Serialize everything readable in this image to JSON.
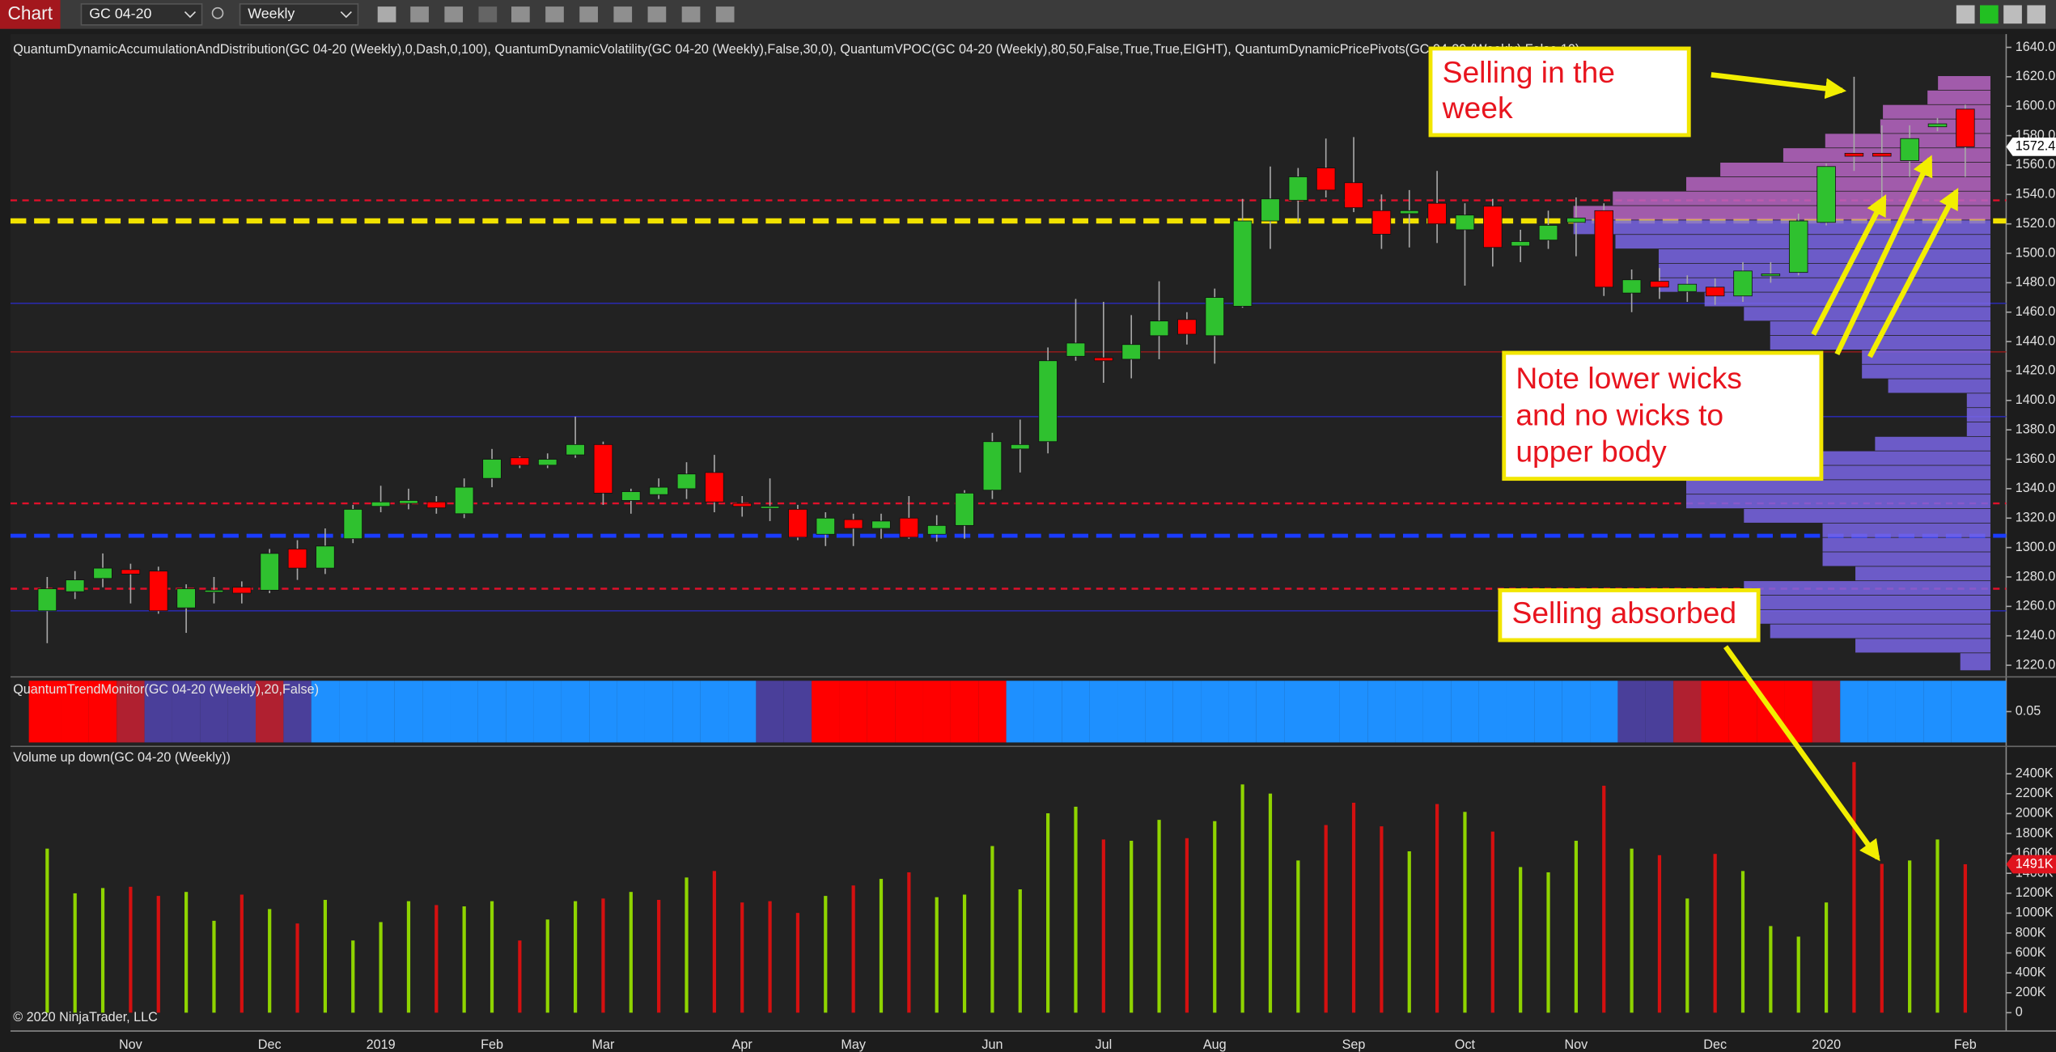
{
  "toolbar": {
    "button": "Chart",
    "instrument": "GC 04-20",
    "interval": "Weekly"
  },
  "footer": "© 2020 NinjaTrader, LLC",
  "chart_data": [
    {
      "type": "candlestick",
      "title": "QuantumDynamicAccumulationAndDistribution(GC 04-20 (Weekly),0,Dash,0,100), QuantumDynamicVolatility(GC 04-20 (Weekly),False,30,0), QuantumVPOC(GC 04-20 (Weekly),80,50,False,True,True,EIGHT), QuantumDynamicPricePivots(GC 04-20 (Weekly),False,10)",
      "open": [
        1257,
        1270,
        1279,
        1285,
        1284,
        1259,
        1271,
        1273,
        1271,
        1299,
        1286,
        1306,
        1328,
        1330,
        1331,
        1323,
        1347,
        1361,
        1356,
        1363,
        1370,
        1332,
        1336,
        1340,
        1351,
        1330,
        1328,
        1326,
        1309,
        1319,
        1313,
        1320,
        1309,
        1315,
        1339,
        1367,
        1372,
        1430,
        1429,
        1428,
        1444,
        1455,
        1444,
        1464,
        1522,
        1536,
        1558,
        1548,
        1529,
        1527,
        1534,
        1516,
        1532,
        1505,
        1509,
        1521,
        1529,
        1473,
        1481,
        1474,
        1477,
        1471,
        1486,
        1487,
        1521,
        1568,
        1568,
        1563,
        1586,
        1598
      ],
      "high": [
        1280,
        1284,
        1296,
        1289,
        1287,
        1275,
        1280,
        1277,
        1299,
        1305,
        1313,
        1329,
        1342,
        1340,
        1335,
        1347,
        1367,
        1362,
        1364,
        1389,
        1372,
        1340,
        1347,
        1358,
        1363,
        1335,
        1347,
        1329,
        1324,
        1323,
        1323,
        1335,
        1322,
        1339,
        1378,
        1387,
        1436,
        1469,
        1467,
        1458,
        1481,
        1460,
        1476,
        1537,
        1559,
        1558,
        1578,
        1579,
        1540,
        1543,
        1556,
        1534,
        1537,
        1516,
        1529,
        1538,
        1534,
        1489,
        1490,
        1485,
        1483,
        1494,
        1494,
        1527,
        1561,
        1620,
        1587,
        1587,
        1592,
        1601
      ],
      "low": [
        1235,
        1265,
        1273,
        1262,
        1255,
        1242,
        1262,
        1262,
        1269,
        1278,
        1282,
        1303,
        1324,
        1326,
        1323,
        1320,
        1341,
        1354,
        1354,
        1361,
        1329,
        1323,
        1333,
        1333,
        1324,
        1321,
        1318,
        1305,
        1301,
        1301,
        1306,
        1306,
        1304,
        1306,
        1333,
        1351,
        1364,
        1427,
        1412,
        1415,
        1428,
        1438,
        1425,
        1463,
        1503,
        1521,
        1538,
        1528,
        1503,
        1504,
        1507,
        1478,
        1491,
        1494,
        1503,
        1498,
        1471,
        1460,
        1469,
        1467,
        1465,
        1467,
        1480,
        1485,
        1519,
        1556,
        1529,
        1552,
        1583,
        1552
      ],
      "close": [
        1272,
        1278,
        1286,
        1282,
        1257,
        1272,
        1271,
        1269,
        1296,
        1286,
        1301,
        1326,
        1331,
        1332,
        1327,
        1341,
        1360,
        1356,
        1360,
        1370,
        1337,
        1338,
        1341,
        1350,
        1331,
        1328,
        1328,
        1307,
        1320,
        1313,
        1318,
        1307,
        1315,
        1337,
        1372,
        1370,
        1427,
        1439,
        1427,
        1438,
        1454,
        1445,
        1470,
        1522,
        1537,
        1552,
        1543,
        1531,
        1513,
        1529,
        1520,
        1526,
        1504,
        1508,
        1519,
        1524,
        1477,
        1482,
        1477,
        1479,
        1471,
        1488,
        1486,
        1522,
        1559,
        1566,
        1566,
        1578,
        1588,
        1572.4
      ],
      "up_color": "#2fc12f",
      "down_color": "#ff0000",
      "wick_color": "#a8a8a8",
      "ylim": [
        1213,
        1649
      ],
      "yticks": [
        {
          "value": 1220,
          "label": "1220.0"
        },
        {
          "value": 1240,
          "label": "1240.0"
        },
        {
          "value": 1260,
          "label": "1260.0"
        },
        {
          "value": 1280,
          "label": "1280.0"
        },
        {
          "value": 1300,
          "label": "1300.0"
        },
        {
          "value": 1320,
          "label": "1320.0"
        },
        {
          "value": 1340,
          "label": "1340.0"
        },
        {
          "value": 1360,
          "label": "1360.0"
        },
        {
          "value": 1380,
          "label": "1380.0"
        },
        {
          "value": 1400,
          "label": "1400.0"
        },
        {
          "value": 1420,
          "label": "1420.0"
        },
        {
          "value": 1440,
          "label": "1440.0"
        },
        {
          "value": 1460,
          "label": "1460.0"
        },
        {
          "value": 1480,
          "label": "1480.0"
        },
        {
          "value": 1500,
          "label": "1500.0"
        },
        {
          "value": 1520,
          "label": "1520.0"
        },
        {
          "value": 1540,
          "label": "1540.0"
        },
        {
          "value": 1560,
          "label": "1560.0"
        },
        {
          "value": 1580,
          "label": "1580.0"
        },
        {
          "value": 1600,
          "label": "1600.0"
        },
        {
          "value": 1620,
          "label": "1620.0"
        },
        {
          "value": 1640,
          "label": "1640.0"
        }
      ],
      "levels": [
        {
          "value": 1536,
          "color": "#e0102a",
          "style": "dash",
          "width": 1.5
        },
        {
          "value": 1522,
          "color": "#f2e200",
          "style": "dash",
          "width": 4
        },
        {
          "value": 1466,
          "color": "#2a2aa8",
          "style": "solid",
          "width": 1
        },
        {
          "value": 1433,
          "color": "#8a1c1c",
          "style": "solid",
          "width": 1
        },
        {
          "value": 1389,
          "color": "#2a2aa8",
          "style": "solid",
          "width": 1
        },
        {
          "value": 1330,
          "color": "#e0102a",
          "style": "dash",
          "width": 1.5
        },
        {
          "value": 1308,
          "color": "#1a3cff",
          "style": "dash",
          "width": 3
        },
        {
          "value": 1272,
          "color": "#e0102a",
          "style": "dash",
          "width": 1.5
        },
        {
          "value": 1257,
          "color": "#2a2aa8",
          "style": "solid",
          "width": 1
        }
      ],
      "annotations": [
        {
          "lines": [
            "Selling in the",
            "week"
          ]
        },
        {
          "lines": [
            "Note lower wicks",
            "and no wicks to",
            "upper body"
          ]
        },
        {
          "lines": [
            "Selling absorbed"
          ]
        }
      ]
    },
    {
      "type": "band",
      "title": "QuantumTrendMonitor(GC 04-20 (Weekly),20,False)",
      "colors": [
        "#ff0000",
        "#ff0000",
        "#ff0000",
        "#b02030",
        "#4a3f9a",
        "#4a3f9a",
        "#4a3f9a",
        "#4a3f9a",
        "#b02030",
        "#4a3f9a",
        "#1e90ff",
        "#1e90ff",
        "#1e90ff",
        "#1e90ff",
        "#1e90ff",
        "#1e90ff",
        "#1e90ff",
        "#1e90ff",
        "#1e90ff",
        "#1e90ff",
        "#1e90ff",
        "#1e90ff",
        "#1e90ff",
        "#1e90ff",
        "#1e90ff",
        "#1e90ff",
        "#4a3f9a",
        "#4a3f9a",
        "#ff0000",
        "#ff0000",
        "#ff0000",
        "#ff0000",
        "#ff0000",
        "#ff0000",
        "#ff0000",
        "#1e90ff",
        "#1e90ff",
        "#1e90ff",
        "#1e90ff",
        "#1e90ff",
        "#1e90ff",
        "#1e90ff",
        "#1e90ff",
        "#1e90ff",
        "#1e90ff",
        "#1e90ff",
        "#1e90ff",
        "#1e90ff",
        "#1e90ff",
        "#1e90ff",
        "#1e90ff",
        "#1e90ff",
        "#1e90ff",
        "#1e90ff",
        "#1e90ff",
        "#1e90ff",
        "#1e90ff",
        "#4a3f9a",
        "#4a3f9a",
        "#b02030",
        "#ff0000",
        "#ff0000",
        "#ff0000",
        "#ff0000",
        "#b02030",
        "#1e90ff",
        "#1e90ff",
        "#1e90ff",
        "#1e90ff",
        "#1e90ff"
      ],
      "ylim": [
        0,
        0.1
      ],
      "yticks": [
        0.05
      ]
    },
    {
      "type": "bar",
      "title": "Volume up down(GC 04-20 (Weekly))",
      "categories": [
        null,
        null,
        null,
        "Nov",
        null,
        null,
        null,
        null,
        "Dec",
        null,
        null,
        null,
        "2019",
        null,
        null,
        null,
        "Feb",
        null,
        null,
        null,
        "Mar",
        null,
        null,
        null,
        null,
        "Apr",
        null,
        null,
        null,
        "May",
        null,
        null,
        null,
        null,
        "Jun",
        null,
        null,
        null,
        "Jul",
        null,
        null,
        null,
        "Aug",
        null,
        null,
        null,
        null,
        "Sep",
        null,
        null,
        null,
        "Oct",
        null,
        null,
        null,
        "Nov",
        null,
        null,
        null,
        null,
        "Dec",
        null,
        null,
        null,
        "2020",
        null,
        null,
        null,
        null,
        "Feb"
      ],
      "values": [
        1648,
        1199,
        1252,
        1265,
        1173,
        1213,
        923,
        1186,
        1041,
        896,
        1133,
        725,
        910,
        1120,
        1081,
        1068,
        1120,
        725,
        936,
        1120,
        1147,
        1213,
        1133,
        1358,
        1423,
        1107,
        1120,
        1002,
        1173,
        1278,
        1344,
        1410,
        1160,
        1186,
        1674,
        1239,
        2003,
        2069,
        1740,
        1727,
        1937,
        1753,
        1924,
        2293,
        2201,
        1529,
        1885,
        2109,
        1872,
        1621,
        2096,
        2017,
        1819,
        1463,
        1410,
        1727,
        2280,
        1648,
        1582,
        1147,
        1595,
        1423,
        870,
        764,
        1107,
        2517,
        1495,
        1529,
        1740,
        1491
      ],
      "colors": [
        "#8fd400",
        "#8fd400",
        "#8fd400",
        "#d41010",
        "#d41010",
        "#8fd400",
        "#8fd400",
        "#d41010",
        "#8fd400",
        "#d41010",
        "#8fd400",
        "#8fd400",
        "#8fd400",
        "#8fd400",
        "#d41010",
        "#8fd400",
        "#8fd400",
        "#d41010",
        "#8fd400",
        "#8fd400",
        "#d41010",
        "#8fd400",
        "#d41010",
        "#8fd400",
        "#d41010",
        "#d41010",
        "#d41010",
        "#d41010",
        "#8fd400",
        "#d41010",
        "#8fd400",
        "#d41010",
        "#8fd400",
        "#8fd400",
        "#8fd400",
        "#8fd400",
        "#8fd400",
        "#8fd400",
        "#d41010",
        "#8fd400",
        "#8fd400",
        "#d41010",
        "#8fd400",
        "#8fd400",
        "#8fd400",
        "#8fd400",
        "#d41010",
        "#d41010",
        "#d41010",
        "#8fd400",
        "#d41010",
        "#8fd400",
        "#d41010",
        "#8fd400",
        "#8fd400",
        "#8fd400",
        "#d41010",
        "#8fd400",
        "#d41010",
        "#8fd400",
        "#d41010",
        "#8fd400",
        "#8fd400",
        "#8fd400",
        "#8fd400",
        "#d41010",
        "#d41010",
        "#8fd400",
        "#8fd400",
        "#d41010"
      ],
      "current_label": "1491K",
      "ylim": [
        -171,
        2662
      ],
      "yticks": [
        0,
        {
          "value": 200,
          "label": "200K"
        },
        {
          "value": 400,
          "label": "400K"
        },
        {
          "value": 600,
          "label": "600K"
        },
        {
          "value": 800,
          "label": "800K"
        },
        {
          "value": 1000,
          "label": "1000K"
        },
        {
          "value": 1200,
          "label": "1200K"
        },
        {
          "value": 1400,
          "label": "1400K"
        },
        {
          "value": 1600,
          "label": "1600K"
        },
        {
          "value": 1800,
          "label": "1800K"
        },
        {
          "value": 2000,
          "label": "2000K"
        },
        {
          "value": 2200,
          "label": "2200K"
        },
        {
          "value": 2400,
          "label": "2400K"
        }
      ]
    }
  ]
}
